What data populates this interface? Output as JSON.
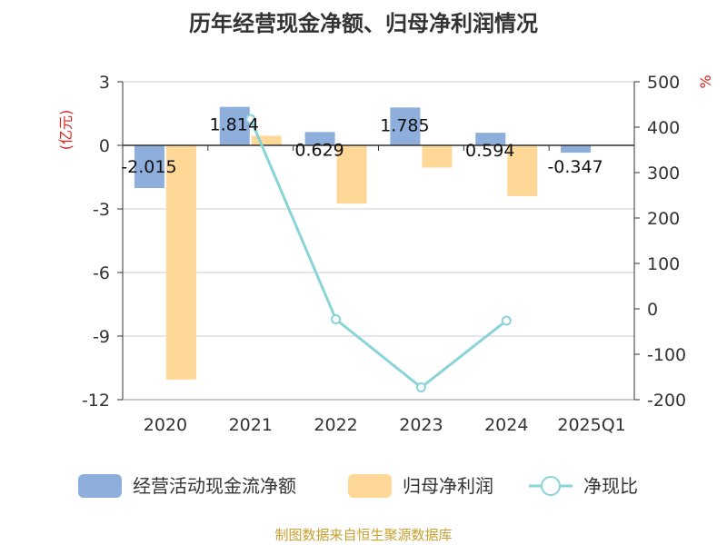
{
  "title": "历年经营现金净额、归母净利润情况",
  "source": "制图数据来自恒生聚源数据库",
  "chart_data": {
    "type": "bar+line",
    "categories": [
      "2020",
      "2021",
      "2022",
      "2023",
      "2024",
      "2025Q1"
    ],
    "left_axis": {
      "unit": "(亿元)",
      "min": -12,
      "max": 3,
      "ticks": [
        3,
        0,
        -3,
        -6,
        -9,
        -12
      ]
    },
    "right_axis": {
      "unit": "%",
      "min": -200,
      "max": 500,
      "ticks": [
        500,
        400,
        300,
        200,
        100,
        0,
        -100,
        -200
      ]
    },
    "series": [
      {
        "name": "经营活动现金流净额",
        "type": "bar",
        "axis": "left",
        "color": "#8eaedc",
        "values": [
          -2.015,
          1.814,
          0.629,
          1.785,
          0.594,
          -0.347
        ],
        "labels": [
          "-2.015",
          "1.814",
          "0.629",
          "1.785",
          "0.594",
          "-0.347"
        ]
      },
      {
        "name": "归母净利润",
        "type": "bar",
        "axis": "left",
        "color": "#ffd898",
        "values": [
          -11.05,
          0.45,
          -2.75,
          -1.05,
          -2.4,
          null
        ]
      },
      {
        "name": "净现比",
        "type": "line",
        "axis": "right",
        "color": "#88d4d8",
        "values": [
          null,
          418,
          -23,
          -173,
          -26,
          null
        ]
      }
    ],
    "legend": [
      "经营活动现金流净额",
      "归母净利润",
      "净现比"
    ],
    "legend_position": "bottom",
    "grid": true
  }
}
